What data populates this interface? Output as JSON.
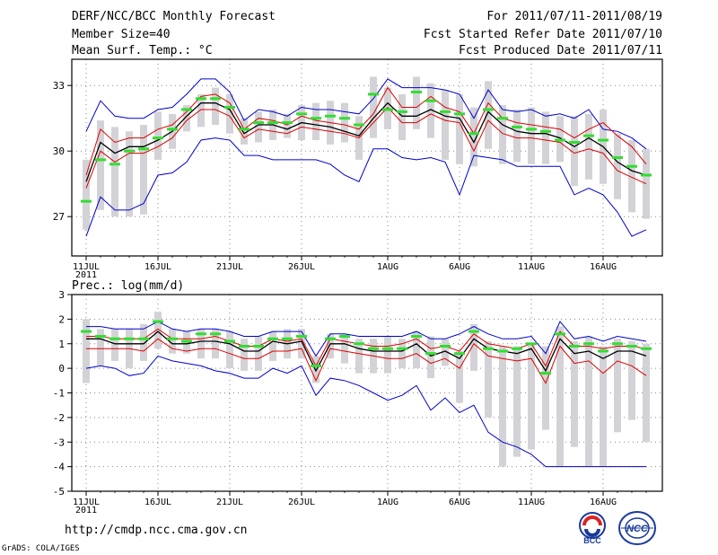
{
  "header": {
    "title": "DERF/NCC/BCC Monthly Forecast",
    "member_size": "Member Size=40",
    "variable": "Mean Surf. Temp.: °C",
    "forecast_for": "For 2011/07/11-2011/08/19",
    "started": "Fcst Started Refer Date 2011/07/10",
    "produced": "Fcst Produced Date 2011/07/11"
  },
  "footer": {
    "url": "http://cmdp.ncc.cma.gov.cn",
    "credit": "GrADS: COLA/IGES",
    "logo_bcc": "BCC",
    "logo_ncc": "NCC"
  },
  "colors": {
    "envelope": "#0000cc",
    "spread": "#dd0000",
    "mean": "#000000",
    "median": "#33dd33",
    "box": "#d3d3d7",
    "grid": "#888888"
  },
  "chart_data": [
    {
      "type": "line",
      "title": "Mean Surf. Temp.: °C",
      "ylim": [
        25.2,
        34.2
      ],
      "yticks": [
        27,
        30,
        33
      ],
      "xticks": [
        "11JUL",
        "16JUL",
        "21JUL",
        "26JUL",
        "1AUG",
        "6AUG",
        "11AUG",
        "16AUG"
      ],
      "xtick_index": [
        0,
        5,
        10,
        15,
        21,
        26,
        31,
        36
      ],
      "year_label": "2011",
      "x": [
        0,
        1,
        2,
        3,
        4,
        5,
        6,
        7,
        8,
        9,
        10,
        11,
        12,
        13,
        14,
        15,
        16,
        17,
        18,
        19,
        20,
        21,
        22,
        23,
        24,
        25,
        26,
        27,
        28,
        29,
        30,
        31,
        32,
        33,
        34,
        35,
        36,
        37,
        38,
        39
      ],
      "series": [
        {
          "name": "max",
          "values": [
            30.9,
            32.3,
            31.6,
            31.5,
            31.5,
            31.9,
            32.0,
            32.6,
            33.3,
            33.3,
            32.7,
            31.4,
            31.9,
            31.8,
            31.6,
            32.0,
            31.9,
            31.9,
            31.8,
            31.7,
            32.4,
            33.3,
            32.9,
            32.9,
            32.9,
            32.8,
            32.6,
            31.5,
            32.8,
            31.9,
            31.8,
            31.9,
            31.6,
            31.7,
            31.5,
            31.9,
            31.0,
            30.9,
            30.6,
            30.1
          ]
        },
        {
          "name": "upper",
          "values": [
            28.9,
            31.0,
            30.4,
            30.6,
            30.6,
            31.0,
            31.2,
            31.8,
            32.5,
            32.6,
            32.2,
            31.0,
            31.5,
            31.4,
            31.2,
            31.6,
            31.4,
            31.3,
            31.2,
            31.0,
            31.7,
            32.9,
            32.0,
            32.0,
            32.5,
            32.0,
            31.8,
            30.8,
            32.2,
            31.5,
            31.3,
            31.2,
            31.1,
            31.0,
            30.6,
            31.0,
            31.3,
            30.7,
            30.2,
            29.4
          ]
        },
        {
          "name": "mean",
          "values": [
            28.6,
            30.4,
            29.9,
            30.2,
            30.2,
            30.5,
            30.9,
            31.6,
            32.2,
            32.2,
            31.9,
            30.8,
            31.2,
            31.2,
            31.0,
            31.3,
            31.2,
            31.1,
            30.9,
            30.7,
            31.5,
            32.2,
            31.6,
            31.6,
            31.9,
            31.6,
            31.5,
            30.4,
            31.8,
            31.2,
            30.9,
            30.8,
            30.8,
            30.6,
            30.2,
            30.6,
            30.2,
            29.5,
            29.1,
            28.9
          ]
        },
        {
          "name": "lower",
          "values": [
            28.3,
            30.0,
            29.5,
            29.9,
            29.9,
            30.2,
            30.6,
            31.4,
            31.9,
            31.9,
            31.6,
            30.6,
            31.0,
            30.9,
            30.8,
            31.1,
            31.0,
            30.9,
            30.8,
            30.6,
            31.3,
            32.0,
            31.3,
            31.3,
            31.7,
            31.4,
            31.3,
            30.0,
            31.4,
            30.8,
            30.6,
            30.6,
            30.5,
            30.4,
            29.9,
            30.1,
            29.9,
            29.1,
            28.8,
            28.5
          ]
        },
        {
          "name": "min",
          "values": [
            26.1,
            27.9,
            27.3,
            27.3,
            27.6,
            28.9,
            29.0,
            29.5,
            30.5,
            30.6,
            30.5,
            29.8,
            29.8,
            29.6,
            29.6,
            29.6,
            29.6,
            29.4,
            28.9,
            28.6,
            30.1,
            30.1,
            29.7,
            29.6,
            29.7,
            29.5,
            28.0,
            29.8,
            29.7,
            29.6,
            29.3,
            29.3,
            29.3,
            29.3,
            28.0,
            28.3,
            28.0,
            27.2,
            26.1,
            26.4
          ]
        },
        {
          "name": "median",
          "values": [
            27.7,
            29.6,
            29.4,
            30.0,
            30.1,
            30.6,
            31.0,
            31.9,
            32.4,
            32.4,
            32.0,
            31.0,
            31.3,
            31.3,
            31.3,
            31.7,
            31.5,
            31.6,
            31.5,
            31.2,
            32.6,
            31.9,
            31.8,
            32.7,
            32.3,
            31.8,
            31.7,
            30.8,
            31.9,
            31.5,
            31.1,
            31.0,
            30.9,
            30.5,
            30.4,
            30.7,
            30.5,
            29.7,
            29.3,
            28.9
          ]
        }
      ],
      "boxes": [
        [
          26.4,
          29.6
        ],
        [
          27.3,
          31.4
        ],
        [
          27.0,
          31.1
        ],
        [
          27.0,
          30.9
        ],
        [
          27.1,
          31.2
        ],
        [
          29.6,
          31.8
        ],
        [
          30.1,
          31.7
        ],
        [
          30.9,
          32.1
        ],
        [
          31.1,
          32.6
        ],
        [
          31.2,
          32.9
        ],
        [
          30.8,
          32.6
        ],
        [
          30.3,
          31.5
        ],
        [
          30.4,
          31.8
        ],
        [
          30.5,
          31.9
        ],
        [
          30.6,
          31.7
        ],
        [
          30.5,
          32.1
        ],
        [
          30.5,
          32.2
        ],
        [
          30.3,
          32.3
        ],
        [
          30.4,
          32.2
        ],
        [
          29.6,
          31.6
        ],
        [
          30.6,
          33.4
        ],
        [
          31.0,
          32.9
        ],
        [
          30.5,
          32.6
        ],
        [
          31.0,
          33.4
        ],
        [
          30.6,
          33.1
        ],
        [
          29.6,
          32.8
        ],
        [
          29.4,
          32.6
        ],
        [
          29.3,
          32.0
        ],
        [
          30.1,
          33.2
        ],
        [
          29.4,
          32.1
        ],
        [
          29.5,
          31.9
        ],
        [
          29.4,
          32.0
        ],
        [
          29.4,
          31.8
        ],
        [
          29.5,
          31.6
        ],
        [
          28.4,
          31.6
        ],
        [
          28.7,
          31.7
        ],
        [
          28.5,
          31.9
        ],
        [
          27.8,
          30.8
        ],
        [
          27.2,
          30.5
        ],
        [
          26.9,
          30.1
        ]
      ]
    },
    {
      "type": "line",
      "title": "Prec.: log(mm/d)",
      "ylim": [
        -5,
        3
      ],
      "yticks": [
        -5,
        -4,
        -3,
        -2,
        -1,
        0,
        1,
        2,
        3
      ],
      "xticks": [
        "11JUL",
        "16JUL",
        "21JUL",
        "26JUL",
        "1AUG",
        "6AUG",
        "11AUG",
        "16AUG"
      ],
      "xtick_index": [
        0,
        5,
        10,
        15,
        21,
        26,
        31,
        36
      ],
      "year_label": "2011",
      "x": [
        0,
        1,
        2,
        3,
        4,
        5,
        6,
        7,
        8,
        9,
        10,
        11,
        12,
        13,
        14,
        15,
        16,
        17,
        18,
        19,
        20,
        21,
        22,
        23,
        24,
        25,
        26,
        27,
        28,
        29,
        30,
        31,
        32,
        33,
        34,
        35,
        36,
        37,
        38,
        39
      ],
      "series": [
        {
          "name": "max",
          "values": [
            1.7,
            1.7,
            1.6,
            1.6,
            1.6,
            1.9,
            1.6,
            1.5,
            1.6,
            1.6,
            1.5,
            1.3,
            1.3,
            1.5,
            1.5,
            1.5,
            0.5,
            1.4,
            1.4,
            1.3,
            1.3,
            1.3,
            1.3,
            1.5,
            1.2,
            1.2,
            1.4,
            1.7,
            1.4,
            1.2,
            1.2,
            1.3,
            0.6,
            1.9,
            1.2,
            1.3,
            1.1,
            1.3,
            1.2,
            1.1
          ]
        },
        {
          "name": "upper",
          "values": [
            1.3,
            1.3,
            1.2,
            1.2,
            1.2,
            1.6,
            1.2,
            1.2,
            1.2,
            1.3,
            1.1,
            0.9,
            0.9,
            1.2,
            1.1,
            1.2,
            0.1,
            1.2,
            1.1,
            1.0,
            0.9,
            0.9,
            1.0,
            1.2,
            0.8,
            0.9,
            0.7,
            1.4,
            1.0,
            0.9,
            0.8,
            1.0,
            0.1,
            1.5,
            0.9,
            0.9,
            0.8,
            0.9,
            0.9,
            0.8
          ]
        },
        {
          "name": "mean",
          "values": [
            1.2,
            1.2,
            1.0,
            1.0,
            1.0,
            1.5,
            1.0,
            1.0,
            1.1,
            1.1,
            1.0,
            0.7,
            0.7,
            1.1,
            1.0,
            1.1,
            -0.1,
            1.0,
            1.0,
            0.8,
            0.7,
            0.7,
            0.7,
            1.0,
            0.5,
            0.7,
            0.4,
            1.2,
            0.8,
            0.7,
            0.6,
            0.8,
            -0.1,
            1.2,
            0.6,
            0.7,
            0.4,
            0.7,
            0.7,
            0.5
          ]
        },
        {
          "name": "lower",
          "values": [
            0.8,
            0.8,
            0.8,
            0.8,
            0.7,
            1.2,
            0.8,
            0.7,
            0.8,
            0.8,
            0.6,
            0.4,
            0.4,
            0.7,
            0.7,
            0.8,
            -0.5,
            0.8,
            0.7,
            0.6,
            0.5,
            0.4,
            0.4,
            0.6,
            0.2,
            0.4,
            0.0,
            1.0,
            0.5,
            0.4,
            0.3,
            0.4,
            -0.6,
            0.9,
            0.2,
            0.3,
            -0.2,
            0.3,
            0.1,
            -0.3
          ]
        },
        {
          "name": "min",
          "values": [
            0.0,
            0.1,
            0.0,
            -0.3,
            -0.2,
            0.5,
            0.3,
            0.2,
            0.1,
            -0.1,
            -0.2,
            -0.4,
            -0.4,
            0.0,
            -0.2,
            0.1,
            -1.1,
            -0.4,
            -0.5,
            -0.7,
            -1.0,
            -1.3,
            -1.1,
            -0.7,
            -1.7,
            -1.2,
            -1.8,
            -1.5,
            -2.6,
            -3.0,
            -3.2,
            -3.5,
            -4.0,
            -4.0,
            -4.0,
            -4.0,
            -4.0,
            -4.0,
            -4.0,
            -4.0
          ]
        },
        {
          "name": "median",
          "values": [
            1.5,
            1.3,
            1.2,
            1.2,
            1.2,
            1.9,
            1.2,
            1.1,
            1.4,
            1.4,
            1.1,
            0.9,
            0.9,
            1.2,
            1.2,
            1.3,
            0.1,
            1.2,
            1.3,
            1.0,
            0.8,
            0.8,
            0.8,
            1.3,
            0.6,
            0.9,
            0.6,
            1.5,
            0.8,
            0.7,
            0.8,
            1.0,
            -0.2,
            1.4,
            0.9,
            1.0,
            0.7,
            1.0,
            0.9,
            0.8
          ]
        }
      ],
      "boxes": [
        [
          -0.6,
          2.0
        ],
        [
          0.1,
          1.6
        ],
        [
          0.3,
          1.6
        ],
        [
          0.0,
          1.6
        ],
        [
          0.3,
          1.8
        ],
        [
          0.8,
          2.3
        ],
        [
          0.6,
          1.6
        ],
        [
          0.6,
          1.5
        ],
        [
          0.4,
          1.6
        ],
        [
          0.4,
          1.6
        ],
        [
          0.0,
          1.5
        ],
        [
          -0.1,
          1.2
        ],
        [
          -0.1,
          1.3
        ],
        [
          0.3,
          1.5
        ],
        [
          0.4,
          1.6
        ],
        [
          0.4,
          1.6
        ],
        [
          -0.6,
          0.5
        ],
        [
          0.4,
          1.4
        ],
        [
          0.2,
          1.4
        ],
        [
          -0.2,
          1.2
        ],
        [
          -0.2,
          1.2
        ],
        [
          -0.2,
          1.3
        ],
        [
          0.0,
          1.2
        ],
        [
          0.0,
          1.5
        ],
        [
          -0.4,
          1.3
        ],
        [
          0.1,
          1.2
        ],
        [
          -1.4,
          0.7
        ],
        [
          -0.1,
          1.8
        ],
        [
          -2.0,
          1.1
        ],
        [
          -4.0,
          0.9
        ],
        [
          -3.6,
          0.9
        ],
        [
          -3.3,
          1.0
        ],
        [
          -2.5,
          0.9
        ],
        [
          -4.0,
          1.7
        ],
        [
          -3.2,
          1.1
        ],
        [
          -4.0,
          1.3
        ],
        [
          -4.0,
          0.9
        ],
        [
          -2.6,
          1.2
        ],
        [
          -2.1,
          1.1
        ],
        [
          -3.0,
          1.0
        ]
      ]
    }
  ]
}
